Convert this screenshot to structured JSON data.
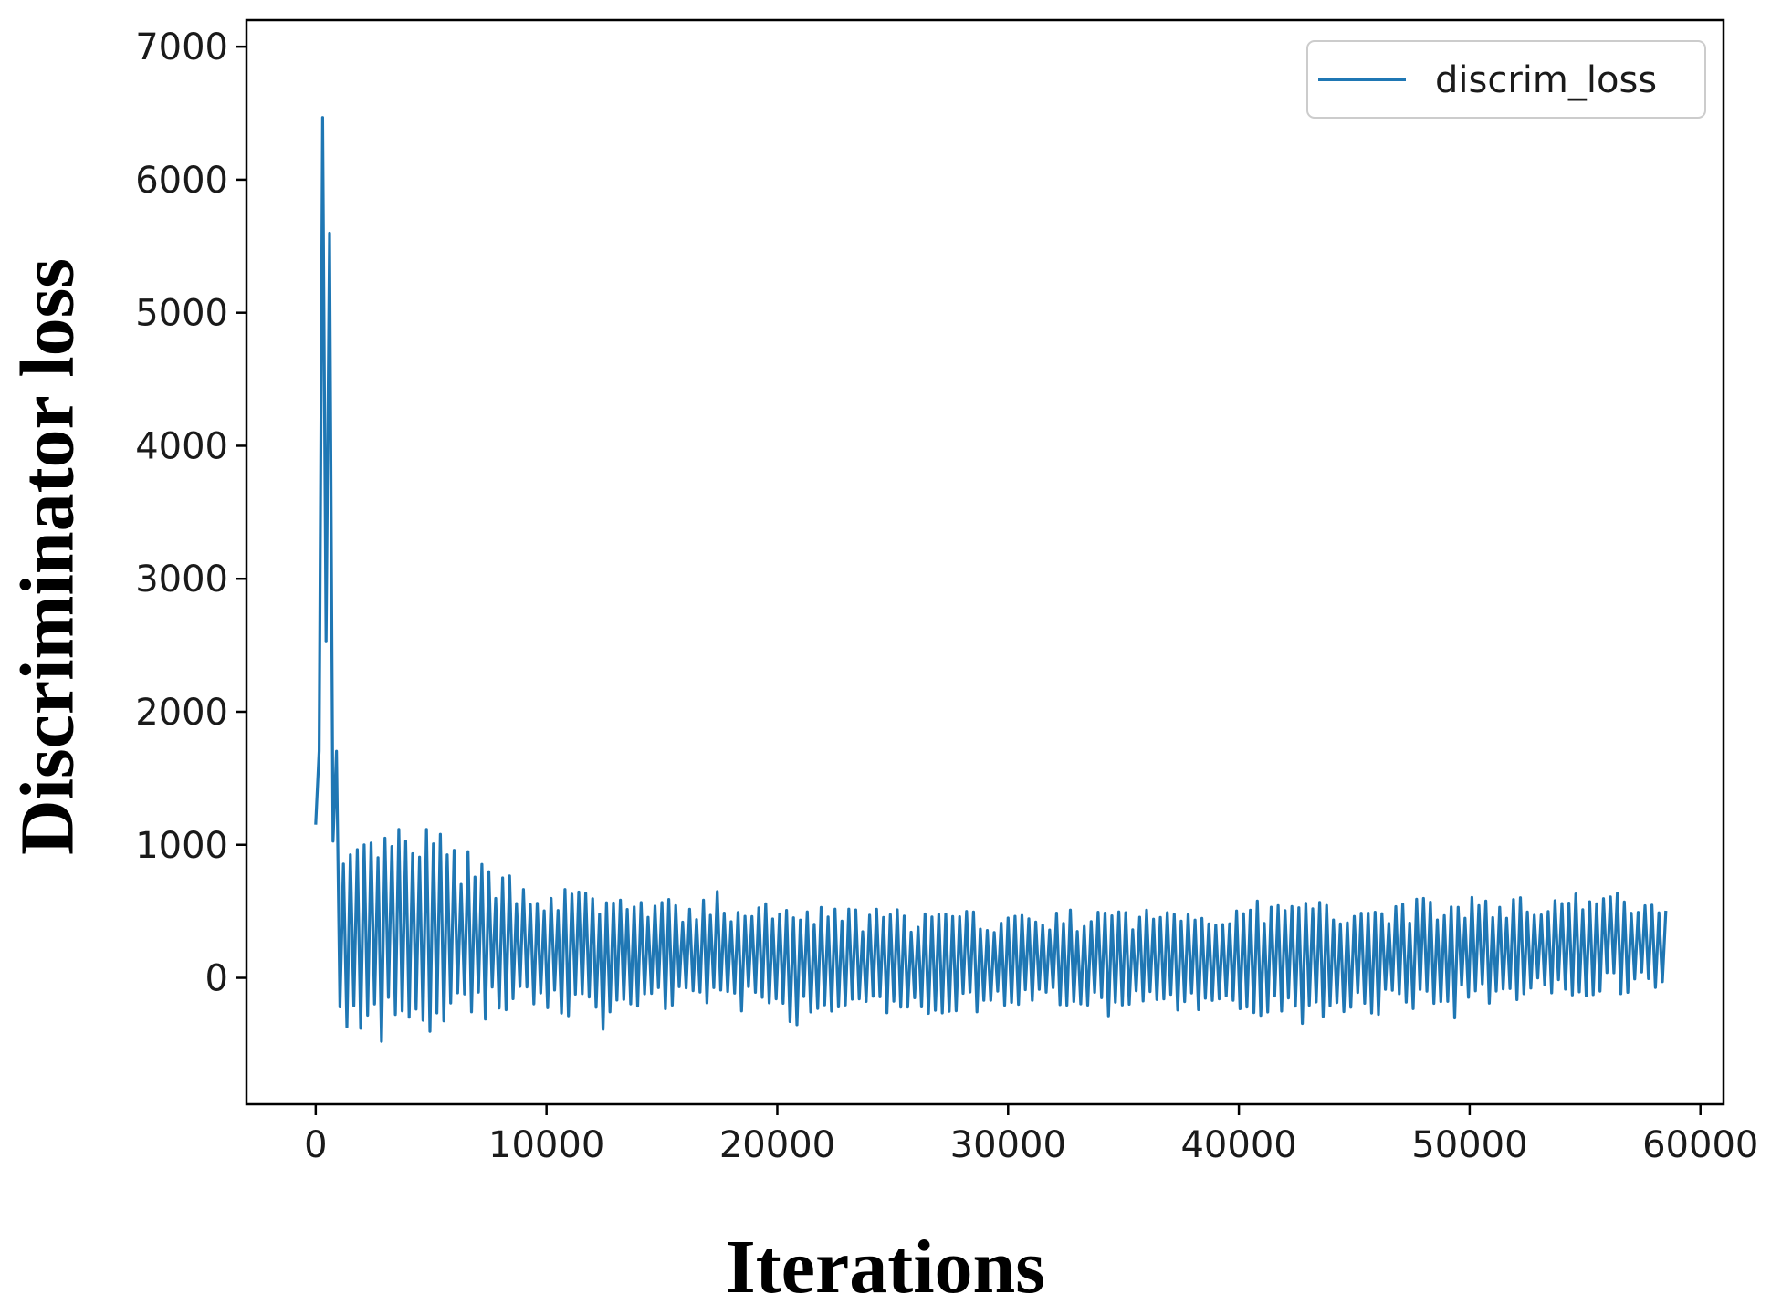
{
  "chart_data": {
    "type": "line",
    "title": "",
    "xlabel": "Iterations",
    "ylabel": "Discriminator loss",
    "xlim": [
      -3000,
      61000
    ],
    "ylim": [
      -950,
      7200
    ],
    "x_ticks": [
      0,
      10000,
      20000,
      30000,
      40000,
      50000,
      60000
    ],
    "x_tick_labels": [
      "0",
      "10000",
      "20000",
      "30000",
      "40000",
      "50000",
      "60000"
    ],
    "y_ticks": [
      0,
      1000,
      2000,
      3000,
      4000,
      5000,
      6000,
      7000
    ],
    "y_tick_labels": [
      "0",
      "1000",
      "2000",
      "3000",
      "4000",
      "5000",
      "6000",
      "7000"
    ],
    "grid": false,
    "legend_position": "top-right",
    "series": [
      {
        "name": "discrim_loss",
        "color": "#1f77b4",
        "x_range": [
          0,
          58500
        ],
        "x": [
          0,
          100,
          200,
          350,
          500,
          650,
          800,
          1000,
          1500,
          3000,
          5000,
          7000,
          9000,
          12000,
          15000,
          20000,
          25000,
          30000,
          35000,
          40000,
          45000,
          50000,
          55000,
          58500
        ],
        "upper_envelope": [
          1500,
          5800,
          6600,
          6850,
          6500,
          5500,
          2600,
          950,
          950,
          1150,
          1150,
          900,
          750,
          650,
          600,
          560,
          520,
          500,
          520,
          580,
          600,
          600,
          650,
          650
        ],
        "lower_envelope": [
          -50,
          100,
          1600,
          2000,
          1700,
          1500,
          500,
          -400,
          -500,
          -500,
          -450,
          -350,
          -300,
          -280,
          -250,
          -250,
          -300,
          -250,
          -230,
          -280,
          -300,
          -200,
          -150,
          -100
        ],
        "sample_step": 150,
        "noise_seed": 7
      }
    ]
  }
}
